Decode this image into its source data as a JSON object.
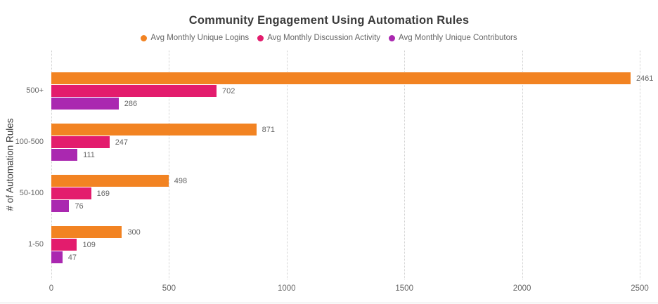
{
  "title": "Community Engagement Using Automation Rules",
  "legend": [
    {
      "label": "Avg Monthly Unique Logins",
      "color": "#F28322"
    },
    {
      "label": "Avg Monthly Discussion Activity",
      "color": "#E31C6D"
    },
    {
      "label": "Avg Monthly Unique Contributors",
      "color": "#AA28B0"
    }
  ],
  "chart_data": {
    "type": "bar",
    "orientation": "horizontal",
    "title": "Community Engagement Using Automation Rules",
    "categories": [
      "500+",
      "100-500",
      "50-100",
      "1-50"
    ],
    "series": [
      {
        "name": "Avg Monthly Unique Logins",
        "color": "#F28322",
        "values": [
          2461,
          871,
          498,
          300
        ]
      },
      {
        "name": "Avg Monthly Discussion Activity",
        "color": "#E31C6D",
        "values": [
          702,
          247,
          169,
          109
        ]
      },
      {
        "name": "Avg Monthly Unique Contributors",
        "color": "#AA28B0",
        "values": [
          286,
          111,
          76,
          47
        ]
      }
    ],
    "xlabel": "",
    "ylabel": "# of Automation Rules",
    "xlim": [
      0,
      2500
    ],
    "x_ticks": [
      0,
      500,
      1000,
      1500,
      2000,
      2500
    ],
    "grid": "vertical-dotted",
    "gridline_color": "#cfcfcf",
    "legend_position": "top",
    "value_labels": true,
    "text_color": "#666666",
    "title_color": "#3b3b3b"
  }
}
